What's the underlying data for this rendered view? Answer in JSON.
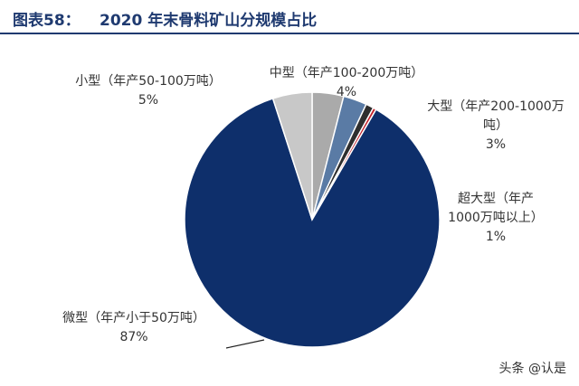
{
  "header": {
    "figure_no": "图表58：",
    "title": "2020 年末骨料矿山分规模占比"
  },
  "chart_data": {
    "type": "pie",
    "start_angle_deg": 0,
    "direction": "clockwise",
    "slices": [
      {
        "label_lines": [
          "中型（年产100-200万吨）"
        ],
        "pct_text": "4%",
        "value": 4,
        "color": "#aaaaaa"
      },
      {
        "label_lines": [
          "大型（年产200-1000万",
          "吨）"
        ],
        "pct_text": "3%",
        "value": 3,
        "color": "#5a7ba5"
      },
      {
        "label_lines": [
          "超大型（年产",
          "1000万吨以上）"
        ],
        "pct_text": "1%",
        "value": 1,
        "color": "#2e2e2e"
      },
      {
        "label_lines": [],
        "pct_text": "",
        "value": 0.4,
        "color": "#c0202a"
      },
      {
        "label_lines": [
          "微型（年产小于50万吨）"
        ],
        "pct_text": "87%",
        "value": 87,
        "color": "#0e2f6b"
      },
      {
        "label_lines": [
          "小型（年产50-100万吨）"
        ],
        "pct_text": "5%",
        "value": 5,
        "color": "#c8c8c8"
      }
    ]
  },
  "watermark": "头条 @认是"
}
